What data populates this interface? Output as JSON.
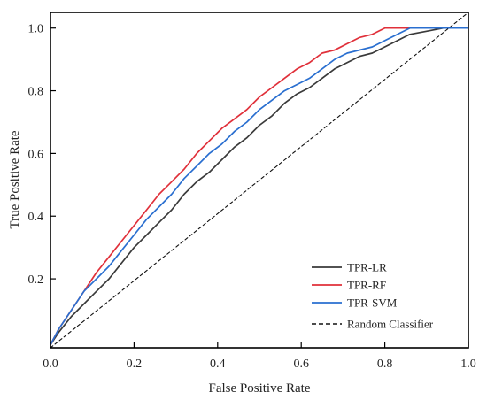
{
  "chart_data": {
    "type": "line",
    "title": "",
    "xlabel": "False Positive Rate",
    "ylabel": "True Positive Rate",
    "xlim": [
      0.0,
      1.0
    ],
    "ylim": [
      -0.02,
      1.05
    ],
    "xticks": [
      0.0,
      0.2,
      0.4,
      0.6,
      0.8,
      1.0
    ],
    "xtick_labels": [
      "0.0",
      "0.2",
      "0.4",
      "0.6",
      "0.8",
      "1.0"
    ],
    "yticks": [
      0.2,
      0.4,
      0.6,
      0.8,
      1.0
    ],
    "ytick_labels": [
      "0.2",
      "0.4",
      "0.6",
      "0.8",
      "1.0"
    ],
    "grid": false,
    "legend_position": "bottom-right",
    "series": [
      {
        "name": "TPR-LR",
        "color": "#3a3a3a",
        "style": "solid",
        "x": [
          0.0,
          0.02,
          0.05,
          0.08,
          0.11,
          0.14,
          0.17,
          0.2,
          0.23,
          0.26,
          0.29,
          0.32,
          0.35,
          0.38,
          0.41,
          0.44,
          0.47,
          0.5,
          0.53,
          0.56,
          0.59,
          0.62,
          0.65,
          0.68,
          0.71,
          0.74,
          0.77,
          0.8,
          0.83,
          0.86,
          0.9,
          0.94,
          0.97,
          1.0
        ],
        "y": [
          -0.01,
          0.03,
          0.08,
          0.12,
          0.16,
          0.2,
          0.25,
          0.3,
          0.34,
          0.38,
          0.42,
          0.47,
          0.51,
          0.54,
          0.58,
          0.62,
          0.65,
          0.69,
          0.72,
          0.76,
          0.79,
          0.81,
          0.84,
          0.87,
          0.89,
          0.91,
          0.92,
          0.94,
          0.96,
          0.98,
          0.99,
          1.0,
          1.0,
          1.0
        ]
      },
      {
        "name": "TPR-RF",
        "color": "#e0303a",
        "style": "solid",
        "x": [
          0.0,
          0.02,
          0.05,
          0.08,
          0.11,
          0.14,
          0.17,
          0.2,
          0.23,
          0.26,
          0.29,
          0.32,
          0.35,
          0.38,
          0.41,
          0.44,
          0.47,
          0.5,
          0.53,
          0.56,
          0.59,
          0.62,
          0.65,
          0.68,
          0.71,
          0.74,
          0.77,
          0.8,
          0.82,
          0.85,
          0.9,
          0.95,
          1.0
        ],
        "y": [
          -0.01,
          0.04,
          0.1,
          0.16,
          0.22,
          0.27,
          0.32,
          0.37,
          0.42,
          0.47,
          0.51,
          0.55,
          0.6,
          0.64,
          0.68,
          0.71,
          0.74,
          0.78,
          0.81,
          0.84,
          0.87,
          0.89,
          0.92,
          0.93,
          0.95,
          0.97,
          0.98,
          1.0,
          1.0,
          1.0,
          1.0,
          1.0,
          1.0
        ]
      },
      {
        "name": "TPR-SVM",
        "color": "#2a6fd0",
        "style": "solid",
        "x": [
          0.0,
          0.02,
          0.05,
          0.08,
          0.11,
          0.14,
          0.17,
          0.2,
          0.23,
          0.26,
          0.29,
          0.32,
          0.35,
          0.38,
          0.41,
          0.44,
          0.47,
          0.5,
          0.53,
          0.56,
          0.59,
          0.62,
          0.65,
          0.68,
          0.71,
          0.74,
          0.77,
          0.8,
          0.83,
          0.86,
          0.9,
          0.95,
          1.0
        ],
        "y": [
          -0.01,
          0.04,
          0.1,
          0.16,
          0.2,
          0.24,
          0.29,
          0.34,
          0.39,
          0.43,
          0.47,
          0.52,
          0.56,
          0.6,
          0.63,
          0.67,
          0.7,
          0.74,
          0.77,
          0.8,
          0.82,
          0.84,
          0.87,
          0.9,
          0.92,
          0.93,
          0.94,
          0.96,
          0.98,
          1.0,
          1.0,
          1.0,
          1.0
        ]
      },
      {
        "name": "Random Classifier",
        "color": "#111111",
        "style": "dashed",
        "x": [
          0.0,
          1.0
        ],
        "y": [
          -0.02,
          1.05
        ]
      }
    ]
  }
}
